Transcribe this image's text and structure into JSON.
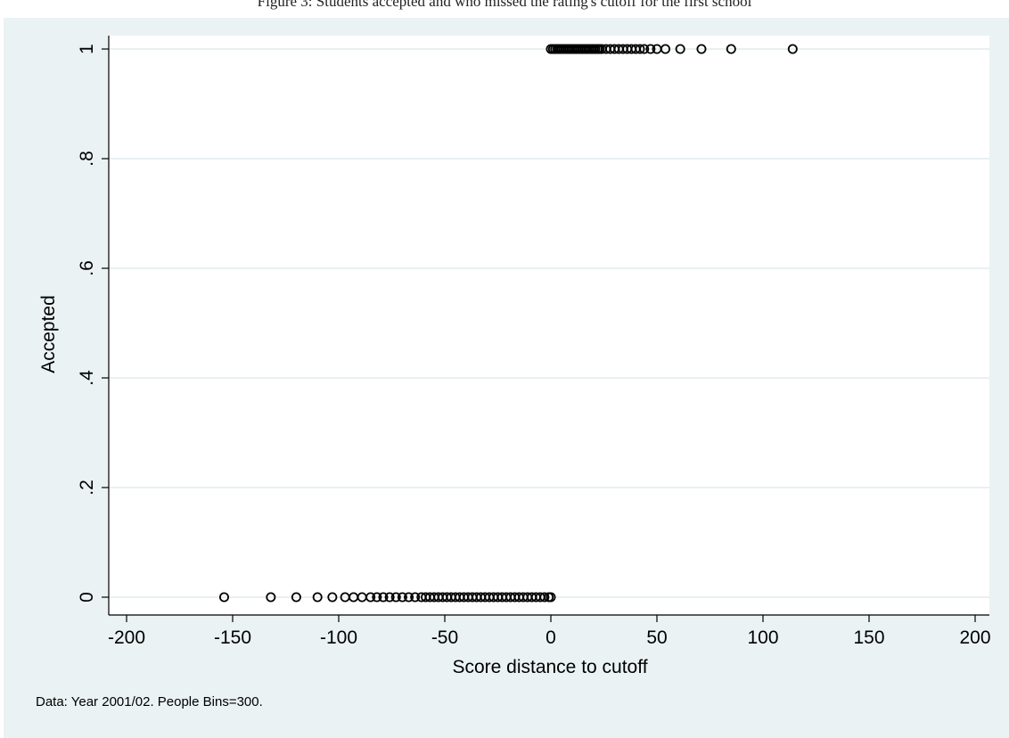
{
  "page_title": "Figure 3: Students accepted and who missed the rating's cutoff for the first school",
  "chart_data": {
    "type": "scatter",
    "title": "",
    "xlabel": "Score distance to cutoff",
    "ylabel": "Accepted",
    "note": "Data: Year 2001/02. People Bins=300.",
    "xlim": [
      -200,
      200
    ],
    "ylim": [
      0,
      1
    ],
    "xticks": [
      -200,
      -150,
      -100,
      -50,
      0,
      50,
      100,
      150,
      200
    ],
    "xtick_labels": [
      "-200",
      "-150",
      "-100",
      "-50",
      "0",
      "50",
      "100",
      "150",
      "200"
    ],
    "yticks": [
      0,
      0.2,
      0.4,
      0.6,
      0.8,
      1
    ],
    "ytick_labels": [
      "0",
      ".2",
      ".4",
      ".6",
      ".8",
      "1"
    ],
    "grid": true,
    "marker": "hollow-circle",
    "series": [
      {
        "x": [
          -154,
          -132,
          -120,
          -110,
          -103,
          -97,
          -93,
          -89,
          -85,
          -82,
          -79,
          -76,
          -73,
          -70,
          -67,
          -64,
          -61,
          -59,
          -57,
          -55,
          -53,
          -51,
          -49,
          -47,
          -45,
          -43,
          -41,
          -39,
          -37,
          -35,
          -33,
          -31,
          -29,
          -27,
          -25,
          -23,
          -21,
          -19,
          -17,
          -15,
          -13,
          -11,
          -9,
          -7,
          -5,
          -3,
          -1,
          0
        ],
        "y": [
          0,
          0,
          0,
          0,
          0,
          0,
          0,
          0,
          0,
          0,
          0,
          0,
          0,
          0,
          0,
          0,
          0,
          0,
          0,
          0,
          0,
          0,
          0,
          0,
          0,
          0,
          0,
          0,
          0,
          0,
          0,
          0,
          0,
          0,
          0,
          0,
          0,
          0,
          0,
          0,
          0,
          0,
          0,
          0,
          0,
          0,
          0,
          0
        ]
      },
      {
        "x": [
          0,
          1,
          2,
          3,
          4,
          5,
          6,
          7,
          8,
          9,
          10,
          11,
          12,
          13,
          14,
          15,
          16,
          17,
          18,
          19,
          20,
          21,
          22,
          23,
          24,
          26,
          28,
          30,
          32,
          34,
          36,
          38,
          40,
          42,
          44,
          47,
          50,
          54,
          61,
          71,
          85,
          114
        ],
        "y": [
          1,
          1,
          1,
          1,
          1,
          1,
          1,
          1,
          1,
          1,
          1,
          1,
          1,
          1,
          1,
          1,
          1,
          1,
          1,
          1,
          1,
          1,
          1,
          1,
          1,
          1,
          1,
          1,
          1,
          1,
          1,
          1,
          1,
          1,
          1,
          1,
          1,
          1,
          1,
          1,
          1,
          1
        ]
      }
    ]
  }
}
